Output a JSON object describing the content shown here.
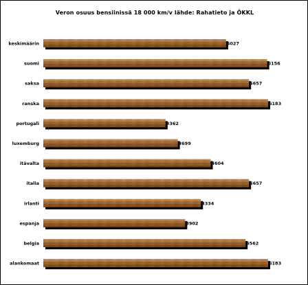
{
  "chart_data": {
    "type": "bar",
    "orientation": "horizontal",
    "title": "Veron osuus bensiinissä 18 000 km/v lähde: Rahatieto ja ÖKKL",
    "categories": [
      "keskimäärin",
      "suomi",
      "saksa",
      "ranska",
      "portugali",
      "luxemburg",
      "itävalta",
      "italia",
      "irlanti",
      "espanja",
      "belgia",
      "alankomaat"
    ],
    "values": [
      5027,
      6156,
      5657,
      6183,
      3362,
      3699,
      4604,
      5657,
      4334,
      3902,
      5562,
      6183
    ],
    "xlim": [
      0,
      6183
    ],
    "grid": false,
    "legend": "none",
    "colors": {
      "bar": "#9a6430",
      "bar_light": "#c8935c",
      "bar_dark": "#6e4119",
      "shadow": "#000000"
    }
  }
}
